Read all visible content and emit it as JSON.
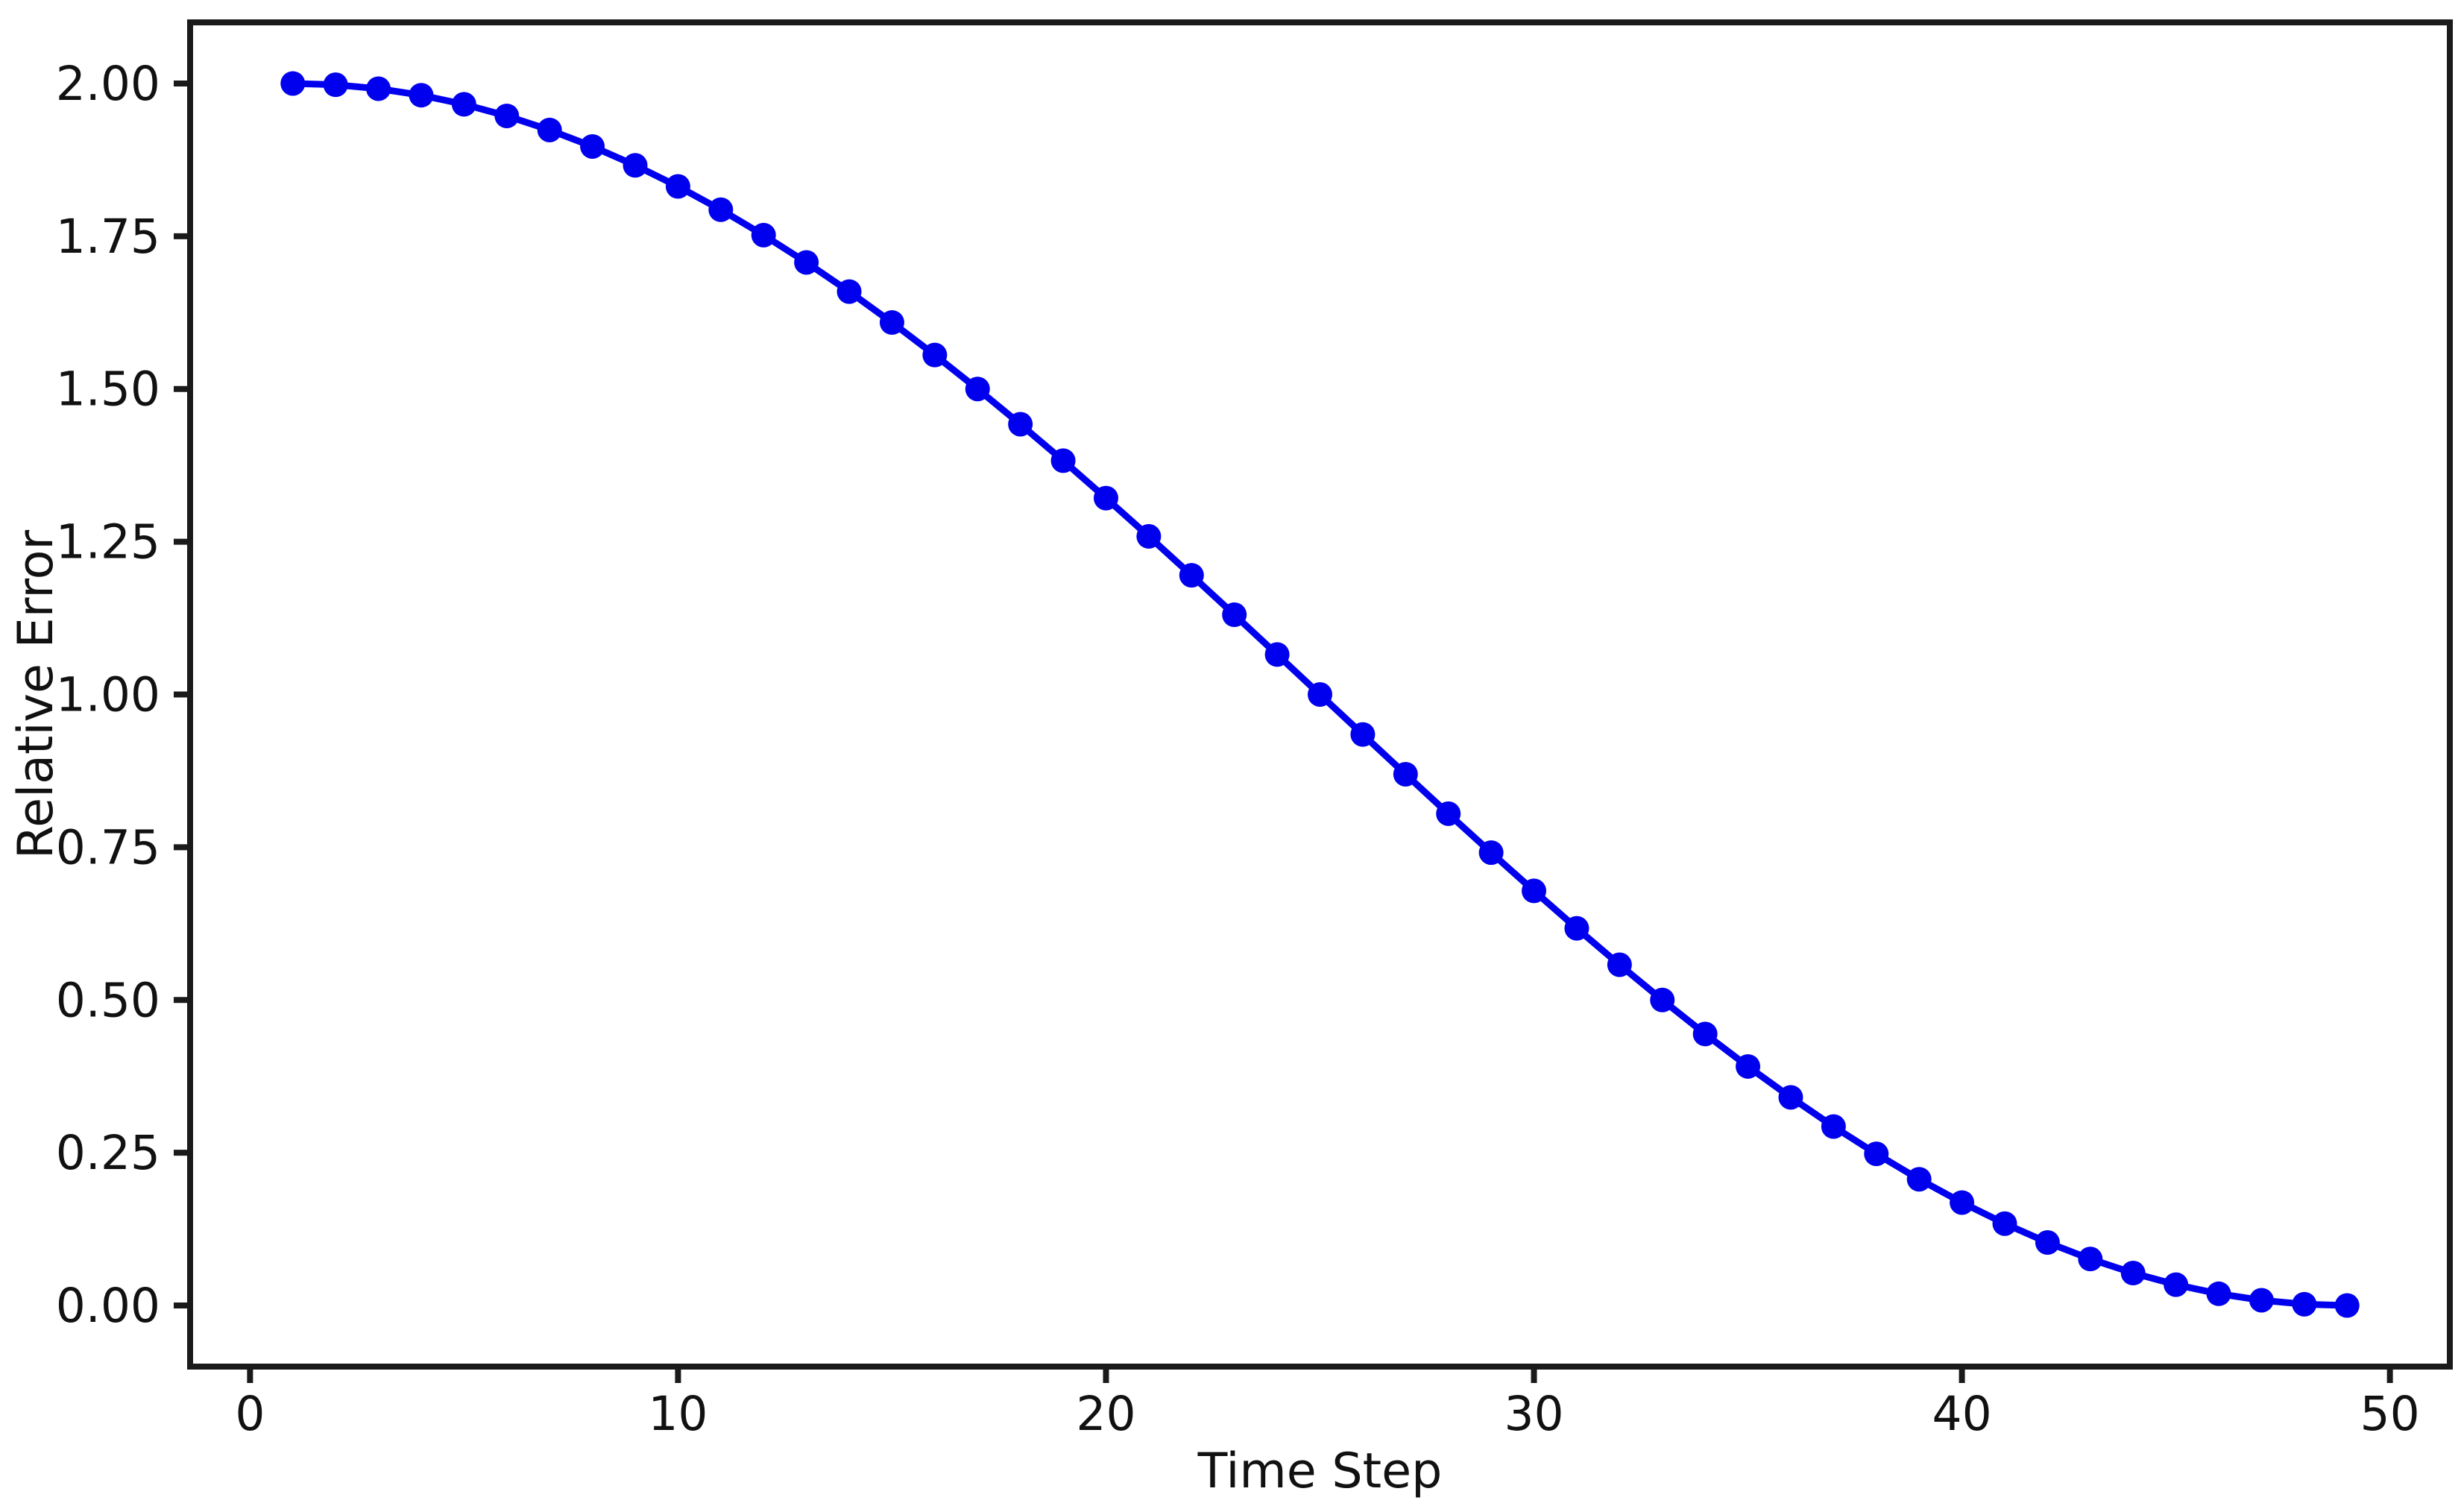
{
  "chart_data": {
    "type": "line",
    "title": "",
    "xlabel": "Time Step",
    "ylabel": "Relative Error",
    "x": [
      1,
      2,
      3,
      4,
      5,
      6,
      7,
      8,
      9,
      10,
      11,
      12,
      13,
      14,
      15,
      16,
      17,
      18,
      19,
      20,
      21,
      22,
      23,
      24,
      25,
      26,
      27,
      28,
      29,
      30,
      31,
      32,
      33,
      34,
      35,
      36,
      37,
      38,
      39,
      40,
      41,
      42,
      43,
      44,
      45,
      46,
      47,
      48,
      49
    ],
    "y": [
      2.0,
      1.9979,
      1.9914,
      1.9808,
      1.9659,
      1.9469,
      1.9239,
      1.8969,
      1.866,
      1.8315,
      1.7934,
      1.7518,
      1.7071,
      1.6594,
      1.6088,
      1.5556,
      1.5,
      1.4423,
      1.3827,
      1.3214,
      1.2588,
      1.1951,
      1.1305,
      1.0654,
      1.0,
      0.9346,
      0.8695,
      0.8049,
      0.7412,
      0.6786,
      0.6173,
      0.5577,
      0.5,
      0.4444,
      0.3912,
      0.3407,
      0.2929,
      0.2482,
      0.2066,
      0.1685,
      0.134,
      0.1031,
      0.0761,
      0.0531,
      0.0341,
      0.0192,
      0.0086,
      0.0021,
      0.0
    ],
    "xlim": [
      -1.4,
      51.4
    ],
    "ylim": [
      -0.1,
      2.1
    ],
    "x_ticks": [
      0,
      10,
      20,
      30,
      40,
      50
    ],
    "x_tick_labels": [
      "0",
      "10",
      "20",
      "30",
      "40",
      "50"
    ],
    "y_ticks": [
      0.0,
      0.25,
      0.5,
      0.75,
      1.0,
      1.25,
      1.5,
      1.75,
      2.0
    ],
    "y_tick_labels": [
      "0.00",
      "0.25",
      "0.50",
      "0.75",
      "1.00",
      "1.25",
      "1.50",
      "1.75",
      "2.00"
    ],
    "grid": false,
    "legend": null,
    "line_color": "#0000EE",
    "marker": "circle",
    "spine_color": "#1a1a1a",
    "background_color": "#ffffff"
  }
}
